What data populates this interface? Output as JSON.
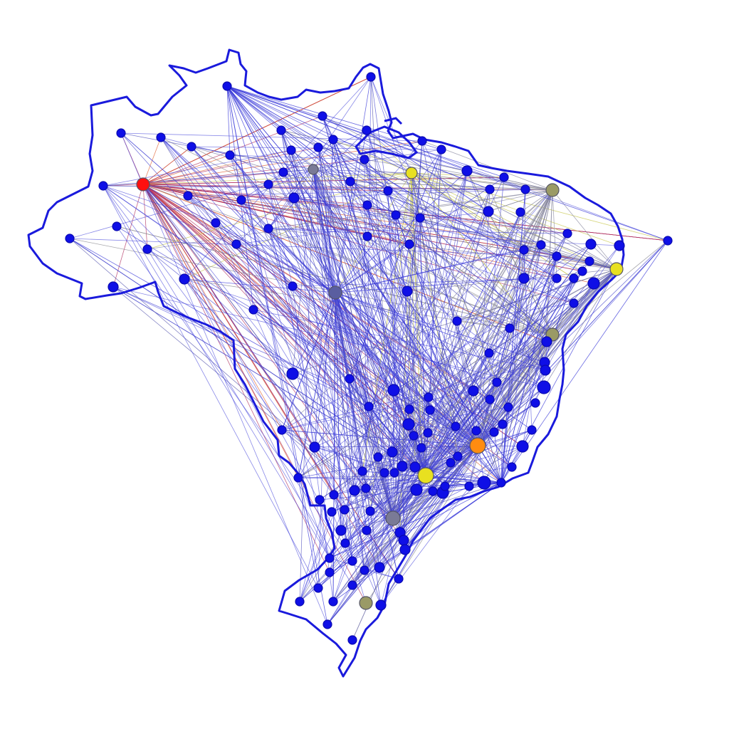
{
  "map": {
    "outline_color": "#1a1adc",
    "edge_color_default": "#3a3ad8",
    "node_colors": {
      "default": "#0f0fe6",
      "red": "#ff1010",
      "orange": "#ff8c10",
      "yellow": "#e8e020",
      "olive": "#9a9a66",
      "gray": "#7a7a96",
      "slate": "#5a5ea0"
    }
  }
}
